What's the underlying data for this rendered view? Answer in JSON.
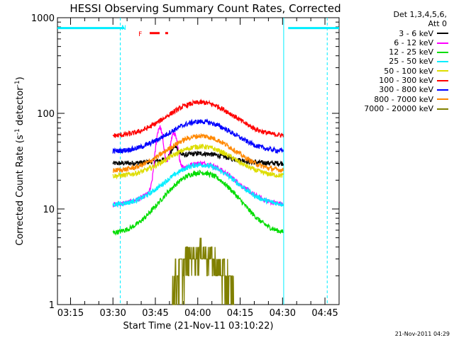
{
  "chart_data": {
    "type": "line",
    "title": "HESSI Observing Summary Count Rates, Corrected",
    "xlabel": "Start Time (21-Nov-11 03:10:22)",
    "ylabel_parts": [
      "Corrected Count Rate (s",
      "-1",
      " detector",
      "-1",
      ")"
    ],
    "yscale": "log",
    "ylim": [
      1,
      1000
    ],
    "xlim_min": [
      190.37,
      290.0
    ],
    "x_units": "minutes after 00:00 UT",
    "y_ticks": [
      {
        "value": 1,
        "label": "1"
      },
      {
        "value": 10,
        "label": "10"
      },
      {
        "value": 100,
        "label": "100"
      },
      {
        "value": 1000,
        "label": "1000"
      }
    ],
    "x_ticks": [
      {
        "value": 195,
        "label": "03:15"
      },
      {
        "value": 210,
        "label": "03:30"
      },
      {
        "value": 225,
        "label": "03:45"
      },
      {
        "value": 240,
        "label": "04:00"
      },
      {
        "value": 255,
        "label": "04:15"
      },
      {
        "value": 270,
        "label": "04:30"
      },
      {
        "value": 285,
        "label": "04:45"
      }
    ],
    "x_range_start": 190.37,
    "x_range_end": 290.0,
    "legend_header": [
      "Det 1,3,4,5,6,",
      "Att 0"
    ],
    "legend_placement": "outside-right",
    "data_window": [
      210.0,
      270.3
    ],
    "series": [
      {
        "name": "3 - 6 keV",
        "color": "#000000",
        "base": 30,
        "peak": 38,
        "center": 241,
        "width": 9
      },
      {
        "name": "6 - 12 keV",
        "color": "#ff00ff",
        "base": 11,
        "peak": 30,
        "center": 241,
        "width": 10
      },
      {
        "name": "12 - 25 keV",
        "color": "#00dd00",
        "base": 5.5,
        "peak": 24,
        "center": 241,
        "width": 10
      },
      {
        "name": "25 - 50 keV",
        "color": "#00eeff",
        "base": 11,
        "peak": 29,
        "center": 241,
        "width": 10
      },
      {
        "name": "50 - 100 keV",
        "color": "#dddd00",
        "base": 22,
        "peak": 45,
        "center": 241,
        "width": 10
      },
      {
        "name": "100 - 300 keV",
        "color": "#ff0000",
        "base": 58,
        "peak": 130,
        "center": 241,
        "width": 10
      },
      {
        "name": "300 - 800 keV",
        "color": "#0000ff",
        "base": 40,
        "peak": 82,
        "center": 241,
        "width": 10
      },
      {
        "name": "800 - 7000 keV",
        "color": "#ff8800",
        "base": 25,
        "peak": 58,
        "center": 241,
        "width": 10
      },
      {
        "name": "7000 - 20000 keV",
        "color": "#808000",
        "base": 1,
        "peak": 3.5,
        "center": 241,
        "width": 6
      }
    ],
    "spikes": [
      {
        "series": "6 - 12 keV",
        "at": 226.5,
        "value": 65
      },
      {
        "series": "6 - 12 keV",
        "at": 231.5,
        "value": 50
      },
      {
        "series": "3 - 6 keV",
        "at": 231.8,
        "value": 40
      }
    ],
    "flag_bars": [
      {
        "color": "#00eeff",
        "from": 190.37,
        "to": 214.0,
        "value": 780
      },
      {
        "color": "#00eeff",
        "from": 272.0,
        "to": 290.0,
        "value": 780
      },
      {
        "color": "#ff0000",
        "from": 223.0,
        "to": 229.5,
        "value": 690,
        "dashed": true
      }
    ],
    "flag_labels": [
      {
        "text": "N",
        "color": "#00eeff",
        "x": 213.0,
        "y": 800
      },
      {
        "text": "F",
        "color": "#ff0000",
        "x": 219.0,
        "y": 690
      }
    ],
    "vertical_lines": [
      {
        "x": 212.6,
        "color": "#00eeff",
        "dashed": true
      },
      {
        "x": 270.4,
        "color": "#00eeff",
        "dashed": false
      },
      {
        "x": 285.8,
        "color": "#00eeff",
        "dashed": true
      }
    ]
  },
  "timestamp": "21-Nov-2011 04:29"
}
